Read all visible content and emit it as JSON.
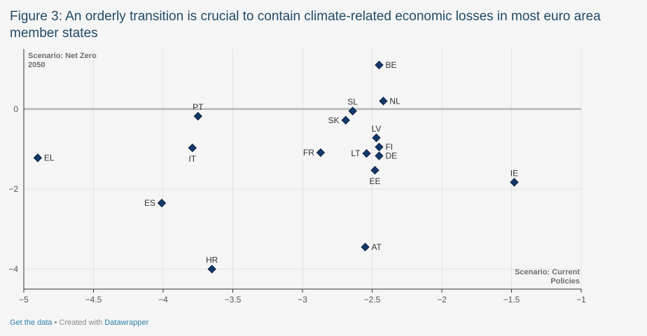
{
  "title": "Figure 3: An orderly transition is crucial to contain climate-related economic losses in most euro area member states",
  "footer": {
    "get_data": "Get the data",
    "separator": " • Created with ",
    "tool": "Datawrapper"
  },
  "chart_data": {
    "type": "scatter",
    "title": "Figure 3: An orderly transition is crucial to contain climate-related economic losses in most euro area member states",
    "xlabel": "",
    "ylabel": "",
    "xlim": [
      -5,
      -1
    ],
    "ylim": [
      -4.5,
      1.5
    ],
    "x_ticks": [
      -5,
      -4.5,
      -4,
      -3.5,
      -3,
      -2.5,
      -2,
      -1.5,
      -1
    ],
    "x_tick_labels": [
      "−5",
      "−4.5",
      "−4",
      "−3.5",
      "−3",
      "−2.5",
      "−2",
      "−1.5",
      "−1"
    ],
    "y_ticks": [
      0,
      -2,
      -4
    ],
    "y_tick_labels": [
      "0",
      "−2",
      "−4"
    ],
    "grid": true,
    "zero_line": true,
    "marker_color": "#15386b",
    "marker_stroke": "#0b2244",
    "annotations": [
      {
        "lines": [
          "Scenario: Net Zero",
          "2050"
        ],
        "position": "top-left"
      },
      {
        "lines": [
          "Scenario: Current",
          "Policies"
        ],
        "position": "bottom-right"
      }
    ],
    "points": [
      {
        "label": "BE",
        "x": -2.45,
        "y": 1.1,
        "label_pos": "right"
      },
      {
        "label": "NL",
        "x": -2.42,
        "y": 0.2,
        "label_pos": "right"
      },
      {
        "label": "SL",
        "x": -2.64,
        "y": -0.05,
        "label_pos": "above"
      },
      {
        "label": "SK",
        "x": -2.69,
        "y": -0.28,
        "label_pos": "left"
      },
      {
        "label": "PT",
        "x": -3.75,
        "y": -0.18,
        "label_pos": "above"
      },
      {
        "label": "LV",
        "x": -2.47,
        "y": -0.72,
        "label_pos": "above"
      },
      {
        "label": "FI",
        "x": -2.45,
        "y": -0.95,
        "label_pos": "right"
      },
      {
        "label": "DE",
        "x": -2.45,
        "y": -1.17,
        "label_pos": "right"
      },
      {
        "label": "LT",
        "x": -2.54,
        "y": -1.11,
        "label_pos": "left"
      },
      {
        "label": "FR",
        "x": -2.87,
        "y": -1.09,
        "label_pos": "left"
      },
      {
        "label": "IT",
        "x": -3.79,
        "y": -0.97,
        "label_pos": "below"
      },
      {
        "label": "EL",
        "x": -4.9,
        "y": -1.22,
        "label_pos": "right"
      },
      {
        "label": "EE",
        "x": -2.48,
        "y": -1.53,
        "label_pos": "below"
      },
      {
        "label": "IE",
        "x": -1.48,
        "y": -1.83,
        "label_pos": "above"
      },
      {
        "label": "ES",
        "x": -4.01,
        "y": -2.35,
        "label_pos": "left"
      },
      {
        "label": "AT",
        "x": -2.55,
        "y": -3.45,
        "label_pos": "right"
      },
      {
        "label": "HR",
        "x": -3.65,
        "y": -4.0,
        "label_pos": "above"
      }
    ]
  }
}
